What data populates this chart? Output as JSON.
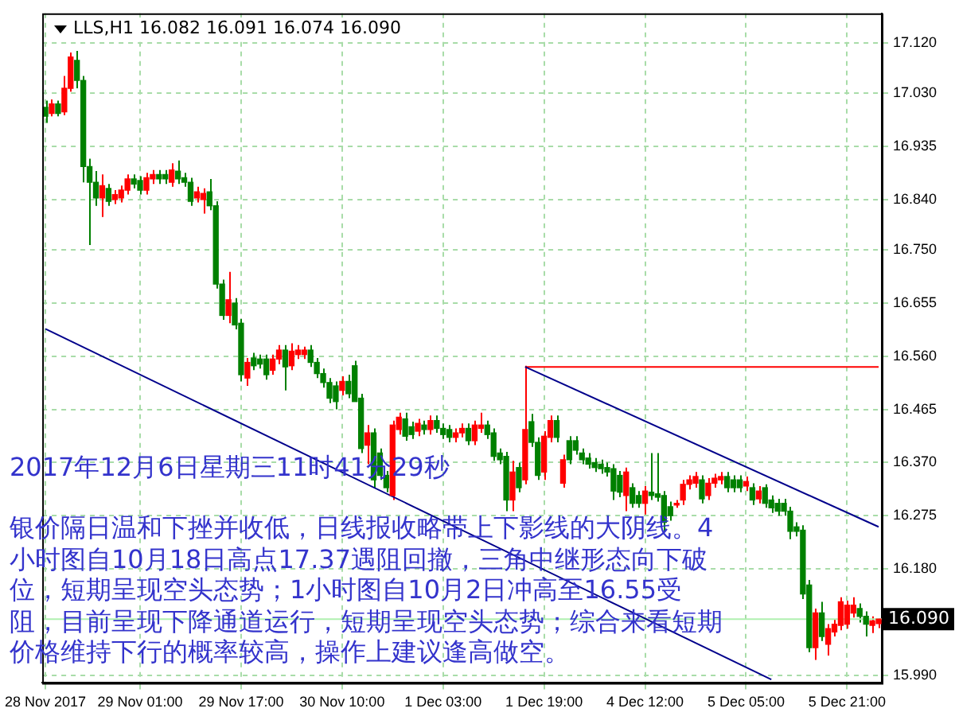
{
  "chart_data": {
    "type": "candlestick",
    "title": "LLS,H1 16.082 16.091 16.074 16.090",
    "annotations": [
      "2017年12月6日星期三11时41分29秒",
      "银价隔日温和下挫并收低，日线报收略带上下影线的大阴线。4小时图自10月18日高点17.37遇阻回撤，三角中继形态向下破位，短期呈现空头态势；1小时图自10月2日冲高至16.55受阻，目前呈现下降通道运行，短期呈现空头态势；综合来看短期价格维持下行的概率较高，操作上建议逢高做空。"
    ],
    "categories": [
      "28 Nov 2017",
      null,
      null,
      null,
      null,
      null,
      null,
      null,
      null,
      null,
      null,
      null,
      null,
      null,
      null,
      "29 Nov 01:00",
      null,
      null,
      null,
      null,
      null,
      null,
      null,
      null,
      null,
      null,
      null,
      null,
      null,
      null,
      null,
      "29 Nov 17:00",
      null,
      null,
      null,
      null,
      null,
      null,
      null,
      null,
      null,
      null,
      null,
      null,
      null,
      null,
      null,
      "30 Nov 10:00",
      null,
      null,
      null,
      null,
      null,
      null,
      null,
      null,
      null,
      null,
      null,
      null,
      null,
      null,
      null,
      "1 Dec 03:00",
      null,
      null,
      null,
      null,
      null,
      null,
      null,
      null,
      null,
      null,
      null,
      null,
      null,
      null,
      null,
      "1 Dec 19:00",
      null,
      null,
      null,
      null,
      null,
      null,
      null,
      null,
      null,
      null,
      null,
      null,
      null,
      null,
      null,
      "4 Dec 12:00",
      null,
      null,
      null,
      null,
      null,
      null,
      null,
      null,
      null,
      null,
      null,
      null,
      null,
      null,
      null,
      "5 Dec 05:00",
      null,
      null,
      null,
      null,
      null,
      null,
      null,
      null,
      null,
      null,
      null,
      null,
      null,
      null,
      null,
      "5 Dec 21:00",
      null,
      null,
      null,
      null,
      null
    ],
    "ohlc": [
      [
        17.005,
        17.017,
        16.977,
        16.989
      ],
      [
        16.994,
        17.019,
        16.989,
        17.011
      ],
      [
        17.011,
        17.017,
        16.989,
        16.994
      ],
      [
        16.997,
        17.061,
        16.991,
        17.039
      ],
      [
        17.039,
        17.103,
        17.033,
        17.095
      ],
      [
        17.089,
        17.106,
        17.039,
        17.053
      ],
      [
        17.053,
        17.061,
        16.871,
        16.899
      ],
      [
        16.899,
        16.913,
        16.759,
        16.871
      ],
      [
        16.871,
        16.891,
        16.829,
        16.843
      ],
      [
        16.843,
        16.885,
        16.809,
        16.865
      ],
      [
        16.86,
        16.868,
        16.829,
        16.837
      ],
      [
        16.84,
        16.857,
        16.832,
        16.849
      ],
      [
        16.843,
        16.865,
        16.835,
        16.857
      ],
      [
        16.857,
        16.885,
        16.849,
        16.877
      ],
      [
        16.877,
        16.885,
        16.86,
        16.868
      ],
      [
        16.874,
        16.882,
        16.849,
        16.857
      ],
      [
        16.857,
        16.888,
        16.849,
        16.879
      ],
      [
        16.877,
        16.893,
        16.868,
        16.885
      ],
      [
        16.885,
        16.893,
        16.868,
        16.877
      ],
      [
        16.885,
        16.893,
        16.868,
        16.877
      ],
      [
        16.871,
        16.905,
        16.863,
        16.893
      ],
      [
        16.891,
        16.91,
        16.868,
        16.877
      ],
      [
        16.879,
        16.888,
        16.863,
        16.871
      ],
      [
        16.871,
        16.879,
        16.829,
        16.837
      ],
      [
        16.843,
        16.863,
        16.835,
        16.854
      ],
      [
        16.84,
        16.86,
        16.815,
        16.851
      ],
      [
        16.854,
        16.877,
        16.821,
        16.829
      ],
      [
        16.829,
        16.837,
        16.681,
        16.689
      ],
      [
        16.689,
        16.697,
        16.625,
        16.633
      ],
      [
        16.633,
        16.711,
        16.619,
        16.661
      ],
      [
        16.655,
        16.664,
        16.608,
        16.616
      ],
      [
        16.619,
        16.627,
        16.515,
        16.527
      ],
      [
        16.521,
        16.557,
        16.507,
        16.549
      ],
      [
        16.557,
        16.566,
        16.535,
        16.543
      ],
      [
        16.555,
        16.563,
        16.538,
        16.546
      ],
      [
        16.555,
        16.563,
        16.518,
        16.527
      ],
      [
        16.535,
        16.563,
        16.527,
        16.555
      ],
      [
        16.555,
        16.58,
        16.546,
        16.571
      ],
      [
        16.571,
        16.58,
        16.499,
        16.541
      ],
      [
        16.543,
        16.583,
        16.535,
        16.569
      ],
      [
        16.563,
        16.58,
        16.555,
        16.571
      ],
      [
        16.563,
        16.577,
        16.555,
        16.571
      ],
      [
        16.571,
        16.58,
        16.541,
        16.549
      ],
      [
        16.549,
        16.557,
        16.521,
        16.529
      ],
      [
        16.529,
        16.538,
        16.504,
        16.513
      ],
      [
        16.513,
        16.521,
        16.476,
        16.485
      ],
      [
        16.507,
        16.515,
        16.465,
        16.479
      ],
      [
        16.499,
        16.524,
        16.49,
        16.515
      ],
      [
        16.515,
        16.527,
        16.485,
        16.493
      ],
      [
        16.543,
        16.552,
        16.479,
        16.479
      ],
      [
        16.485,
        16.493,
        16.387,
        16.395
      ],
      [
        16.401,
        16.437,
        16.367,
        16.423
      ],
      [
        16.423,
        16.431,
        16.325,
        16.339
      ],
      [
        16.387,
        16.395,
        16.339,
        16.347
      ],
      [
        16.347,
        16.355,
        16.317,
        16.325
      ],
      [
        16.311,
        16.445,
        16.303,
        16.437
      ],
      [
        16.429,
        16.459,
        16.42,
        16.451
      ],
      [
        16.448,
        16.459,
        16.409,
        16.417
      ],
      [
        16.434,
        16.443,
        16.412,
        16.42
      ],
      [
        16.426,
        16.448,
        16.417,
        16.44
      ],
      [
        16.437,
        16.445,
        16.42,
        16.429
      ],
      [
        16.429,
        16.454,
        16.42,
        16.445
      ],
      [
        16.445,
        16.454,
        16.423,
        16.431
      ],
      [
        16.431,
        16.44,
        16.412,
        16.42
      ],
      [
        16.429,
        16.437,
        16.406,
        16.415
      ],
      [
        16.415,
        16.431,
        16.406,
        16.423
      ],
      [
        16.423,
        16.44,
        16.415,
        16.431
      ],
      [
        16.431,
        16.44,
        16.401,
        16.409
      ],
      [
        16.409,
        16.445,
        16.401,
        16.437
      ],
      [
        16.431,
        16.459,
        16.423,
        16.437
      ],
      [
        16.437,
        16.445,
        16.412,
        16.42
      ],
      [
        16.423,
        16.431,
        16.373,
        16.381
      ],
      [
        16.387,
        16.395,
        16.367,
        16.375
      ],
      [
        16.381,
        16.389,
        16.283,
        16.303
      ],
      [
        16.303,
        16.373,
        16.283,
        16.353
      ],
      [
        16.361,
        16.37,
        16.317,
        16.325
      ],
      [
        16.339,
        16.543,
        16.331,
        16.429
      ],
      [
        16.443,
        16.457,
        16.398,
        16.406
      ],
      [
        16.406,
        16.415,
        16.339,
        16.347
      ],
      [
        16.353,
        16.426,
        16.339,
        16.417
      ],
      [
        16.415,
        16.454,
        16.406,
        16.445
      ],
      [
        16.445,
        16.454,
        16.406,
        16.415
      ],
      [
        16.333,
        16.384,
        16.325,
        16.375
      ],
      [
        16.409,
        16.417,
        16.367,
        16.375
      ],
      [
        16.409,
        16.417,
        16.384,
        16.392
      ],
      [
        16.387,
        16.395,
        16.367,
        16.375
      ],
      [
        16.378,
        16.387,
        16.359,
        16.367
      ],
      [
        16.37,
        16.378,
        16.353,
        16.361
      ],
      [
        16.367,
        16.375,
        16.35,
        16.359
      ],
      [
        16.361,
        16.37,
        16.345,
        16.353
      ],
      [
        16.359,
        16.367,
        16.303,
        16.319
      ],
      [
        16.347,
        16.355,
        16.308,
        16.317
      ],
      [
        16.311,
        16.361,
        16.283,
        16.353
      ],
      [
        16.325,
        16.333,
        16.289,
        16.297
      ],
      [
        16.311,
        16.319,
        16.289,
        16.297
      ],
      [
        16.297,
        16.328,
        16.277,
        16.319
      ],
      [
        16.317,
        16.387,
        16.303,
        16.311
      ],
      [
        16.314,
        16.387,
        16.3,
        16.308
      ],
      [
        16.311,
        16.319,
        16.247,
        16.263
      ],
      [
        16.291,
        16.3,
        16.266,
        16.275
      ],
      [
        16.294,
        16.303,
        16.289,
        16.297
      ],
      [
        16.303,
        16.339,
        16.294,
        16.331
      ],
      [
        16.331,
        16.347,
        16.322,
        16.339
      ],
      [
        16.333,
        16.353,
        16.325,
        16.345
      ],
      [
        16.339,
        16.347,
        16.297,
        16.305
      ],
      [
        16.311,
        16.342,
        16.303,
        16.333
      ],
      [
        16.333,
        16.35,
        16.325,
        16.342
      ],
      [
        16.339,
        16.353,
        16.331,
        16.345
      ],
      [
        16.345,
        16.353,
        16.317,
        16.325
      ],
      [
        16.339,
        16.347,
        16.317,
        16.325
      ],
      [
        16.339,
        16.347,
        16.317,
        16.325
      ],
      [
        16.328,
        16.345,
        16.319,
        16.336
      ],
      [
        16.325,
        16.333,
        16.294,
        16.303
      ],
      [
        16.305,
        16.328,
        16.297,
        16.319
      ],
      [
        16.325,
        16.331,
        16.289,
        16.297
      ],
      [
        16.303,
        16.311,
        16.28,
        16.289
      ],
      [
        16.297,
        16.305,
        16.275,
        16.283
      ],
      [
        16.297,
        16.305,
        16.275,
        16.283
      ],
      [
        16.283,
        16.291,
        16.233,
        16.247
      ],
      [
        16.255,
        16.263,
        16.238,
        16.247
      ],
      [
        16.249,
        16.258,
        16.126,
        16.135
      ],
      [
        16.151,
        16.16,
        16.031,
        16.039
      ],
      [
        16.039,
        16.109,
        16.017,
        16.101
      ],
      [
        16.101,
        16.121,
        16.051,
        16.059
      ],
      [
        16.045,
        16.081,
        16.025,
        16.073
      ],
      [
        16.067,
        16.09,
        16.059,
        16.081
      ],
      [
        16.079,
        16.129,
        16.07,
        16.121
      ],
      [
        16.081,
        16.123,
        16.073,
        16.115
      ],
      [
        16.101,
        16.129,
        16.093,
        16.115
      ],
      [
        16.109,
        16.118,
        16.084,
        16.095
      ],
      [
        16.095,
        16.104,
        16.059,
        16.081
      ],
      [
        16.079,
        16.095,
        16.065,
        16.087
      ],
      [
        16.082,
        16.091,
        16.074,
        16.09
      ]
    ],
    "colors": [
      "#008000",
      "#ff0000",
      "#008000",
      "#ff0000",
      "#ff0000",
      "#008000",
      "#008000",
      "#008000",
      "#008000",
      "#ff0000",
      "#008000",
      "#ff0000",
      "#ff0000",
      "#ff0000",
      "#008000",
      "#008000",
      "#ff0000",
      "#ff0000",
      "#008000",
      "#008000",
      "#ff0000",
      "#008000",
      "#008000",
      "#008000",
      "#ff0000",
      "#ff0000",
      "#008000",
      "#008000",
      "#008000",
      "#ff0000",
      "#008000",
      "#008000",
      "#ff0000",
      "#008000",
      "#008000",
      "#008000",
      "#ff0000",
      "#ff0000",
      "#008000",
      "#ff0000",
      "#ff0000",
      "#ff0000",
      "#008000",
      "#008000",
      "#008000",
      "#008000",
      "#008000",
      "#ff0000",
      "#008000",
      "#008000",
      "#008000",
      "#ff0000",
      "#008000",
      "#008000",
      "#008000",
      "#ff0000",
      "#ff0000",
      "#008000",
      "#008000",
      "#ff0000",
      "#008000",
      "#ff0000",
      "#008000",
      "#008000",
      "#008000",
      "#ff0000",
      "#ff0000",
      "#008000",
      "#ff0000",
      "#ff0000",
      "#008000",
      "#008000",
      "#008000",
      "#008000",
      "#ff0000",
      "#008000",
      "#ff0000",
      "#008000",
      "#008000",
      "#ff0000",
      "#ff0000",
      "#008000",
      "#ff0000",
      "#008000",
      "#008000",
      "#008000",
      "#008000",
      "#008000",
      "#008000",
      "#008000",
      "#008000",
      "#008000",
      "#ff0000",
      "#008000",
      "#008000",
      "#ff0000",
      "#008000",
      "#008000",
      "#008000",
      "#008000",
      "#ff0000",
      "#ff0000",
      "#ff0000",
      "#ff0000",
      "#008000",
      "#ff0000",
      "#ff0000",
      "#ff0000",
      "#008000",
      "#008000",
      "#008000",
      "#ff0000",
      "#008000",
      "#ff0000",
      "#008000",
      "#008000",
      "#008000",
      "#008000",
      "#008000",
      "#008000",
      "#008000",
      "#008000",
      "#ff0000",
      "#008000",
      "#ff0000",
      "#ff0000",
      "#ff0000",
      "#ff0000",
      "#ff0000",
      "#008000",
      "#008000",
      "#ff0000",
      "#ff0000"
    ],
    "series": [
      {
        "type": "line",
        "color": "#00008b",
        "values": [
          16.609,
          null,
          null,
          null,
          null,
          null,
          null,
          null,
          null,
          null,
          null,
          null,
          null,
          null,
          null,
          null,
          null,
          null,
          null,
          null,
          null,
          null,
          null,
          null,
          null,
          null,
          null,
          null,
          null,
          null,
          null,
          null,
          null,
          null,
          null,
          null,
          null,
          null,
          null,
          null,
          null,
          null,
          null,
          null,
          null,
          null,
          null,
          null,
          null,
          null,
          null,
          null,
          null,
          null,
          null,
          null,
          null,
          null,
          null,
          null,
          null,
          null,
          null,
          null,
          null,
          null,
          null,
          null,
          null,
          null,
          null,
          null,
          null,
          null,
          null,
          null,
          null,
          null,
          null,
          null,
          null,
          null,
          null,
          null,
          null,
          null,
          null,
          null,
          null,
          null,
          null,
          null,
          null,
          null,
          null,
          null,
          null,
          null,
          null,
          null,
          null,
          null,
          null,
          null,
          null,
          null,
          null,
          null,
          null,
          null,
          null,
          null,
          null,
          null,
          null,
          15.982,
          null,
          null,
          null,
          null,
          null,
          null,
          null,
          null,
          null,
          null,
          null,
          null,
          null,
          null,
          null,
          null,
          null
        ]
      },
      {
        "type": "line",
        "color": "#00008b",
        "values": [
          null,
          null,
          null,
          null,
          null,
          null,
          null,
          null,
          null,
          null,
          null,
          null,
          null,
          null,
          null,
          null,
          null,
          null,
          null,
          null,
          null,
          null,
          null,
          null,
          null,
          null,
          null,
          null,
          null,
          null,
          null,
          null,
          null,
          null,
          null,
          null,
          null,
          null,
          null,
          null,
          null,
          null,
          null,
          null,
          null,
          null,
          null,
          null,
          null,
          null,
          null,
          null,
          null,
          null,
          null,
          null,
          null,
          null,
          null,
          null,
          null,
          null,
          null,
          null,
          null,
          null,
          null,
          null,
          null,
          null,
          null,
          null,
          null,
          null,
          null,
          null,
          16.541,
          null,
          null,
          null,
          null,
          null,
          null,
          null,
          null,
          null,
          null,
          null,
          null,
          null,
          null,
          null,
          null,
          null,
          null,
          null,
          null,
          null,
          null,
          null,
          null,
          null,
          null,
          null,
          null,
          null,
          null,
          null,
          null,
          null,
          null,
          null,
          null,
          null,
          null,
          null,
          null,
          null,
          null,
          null,
          null,
          null,
          null,
          null,
          null,
          null,
          null,
          null,
          null,
          null,
          null,
          null,
          16.255
        ]
      },
      {
        "type": "line",
        "color": "#ff0000",
        "values": [
          null,
          null,
          null,
          null,
          null,
          null,
          null,
          null,
          null,
          null,
          null,
          null,
          null,
          null,
          null,
          null,
          null,
          null,
          null,
          null,
          null,
          null,
          null,
          null,
          null,
          null,
          null,
          null,
          null,
          null,
          null,
          null,
          null,
          null,
          null,
          null,
          null,
          null,
          null,
          null,
          null,
          null,
          null,
          null,
          null,
          null,
          null,
          null,
          null,
          null,
          null,
          null,
          null,
          null,
          null,
          null,
          null,
          null,
          null,
          null,
          null,
          null,
          null,
          null,
          null,
          null,
          null,
          null,
          null,
          null,
          null,
          null,
          null,
          null,
          null,
          null,
          16.541,
          null,
          null,
          null,
          null,
          null,
          null,
          null,
          null,
          null,
          null,
          null,
          null,
          null,
          null,
          null,
          null,
          null,
          null,
          null,
          null,
          null,
          null,
          null,
          null,
          null,
          null,
          null,
          null,
          null,
          null,
          null,
          null,
          null,
          null,
          null,
          null,
          null,
          null,
          null,
          null,
          null,
          null,
          null,
          null,
          null,
          null,
          null,
          null,
          null,
          null,
          null,
          null,
          null,
          null,
          null,
          16.541
        ]
      }
    ],
    "ref_lines": [
      {
        "axis": "y",
        "value": 16.09,
        "label": "16.090",
        "color": "#b0f0b0"
      }
    ],
    "ylim": [
      15.976,
      17.173
    ],
    "yticks": [
      {
        "value": 15.99,
        "label": "15.990"
      },
      {
        "value": 16.18,
        "label": "16.180"
      },
      {
        "value": 16.275,
        "label": "16.275"
      },
      {
        "value": 16.37,
        "label": "16.370"
      },
      {
        "value": 16.465,
        "label": "16.465"
      },
      {
        "value": 16.56,
        "label": "16.560"
      },
      {
        "value": 16.655,
        "label": "16.655"
      },
      {
        "value": 16.75,
        "label": "16.750"
      },
      {
        "value": 16.84,
        "label": "16.840"
      },
      {
        "value": 16.935,
        "label": "16.935"
      },
      {
        "value": 17.03,
        "label": "17.030"
      },
      {
        "value": 17.12,
        "label": "17.120"
      }
    ],
    "grid": true,
    "legend": false,
    "marker": "none",
    "line_style": "solid"
  }
}
